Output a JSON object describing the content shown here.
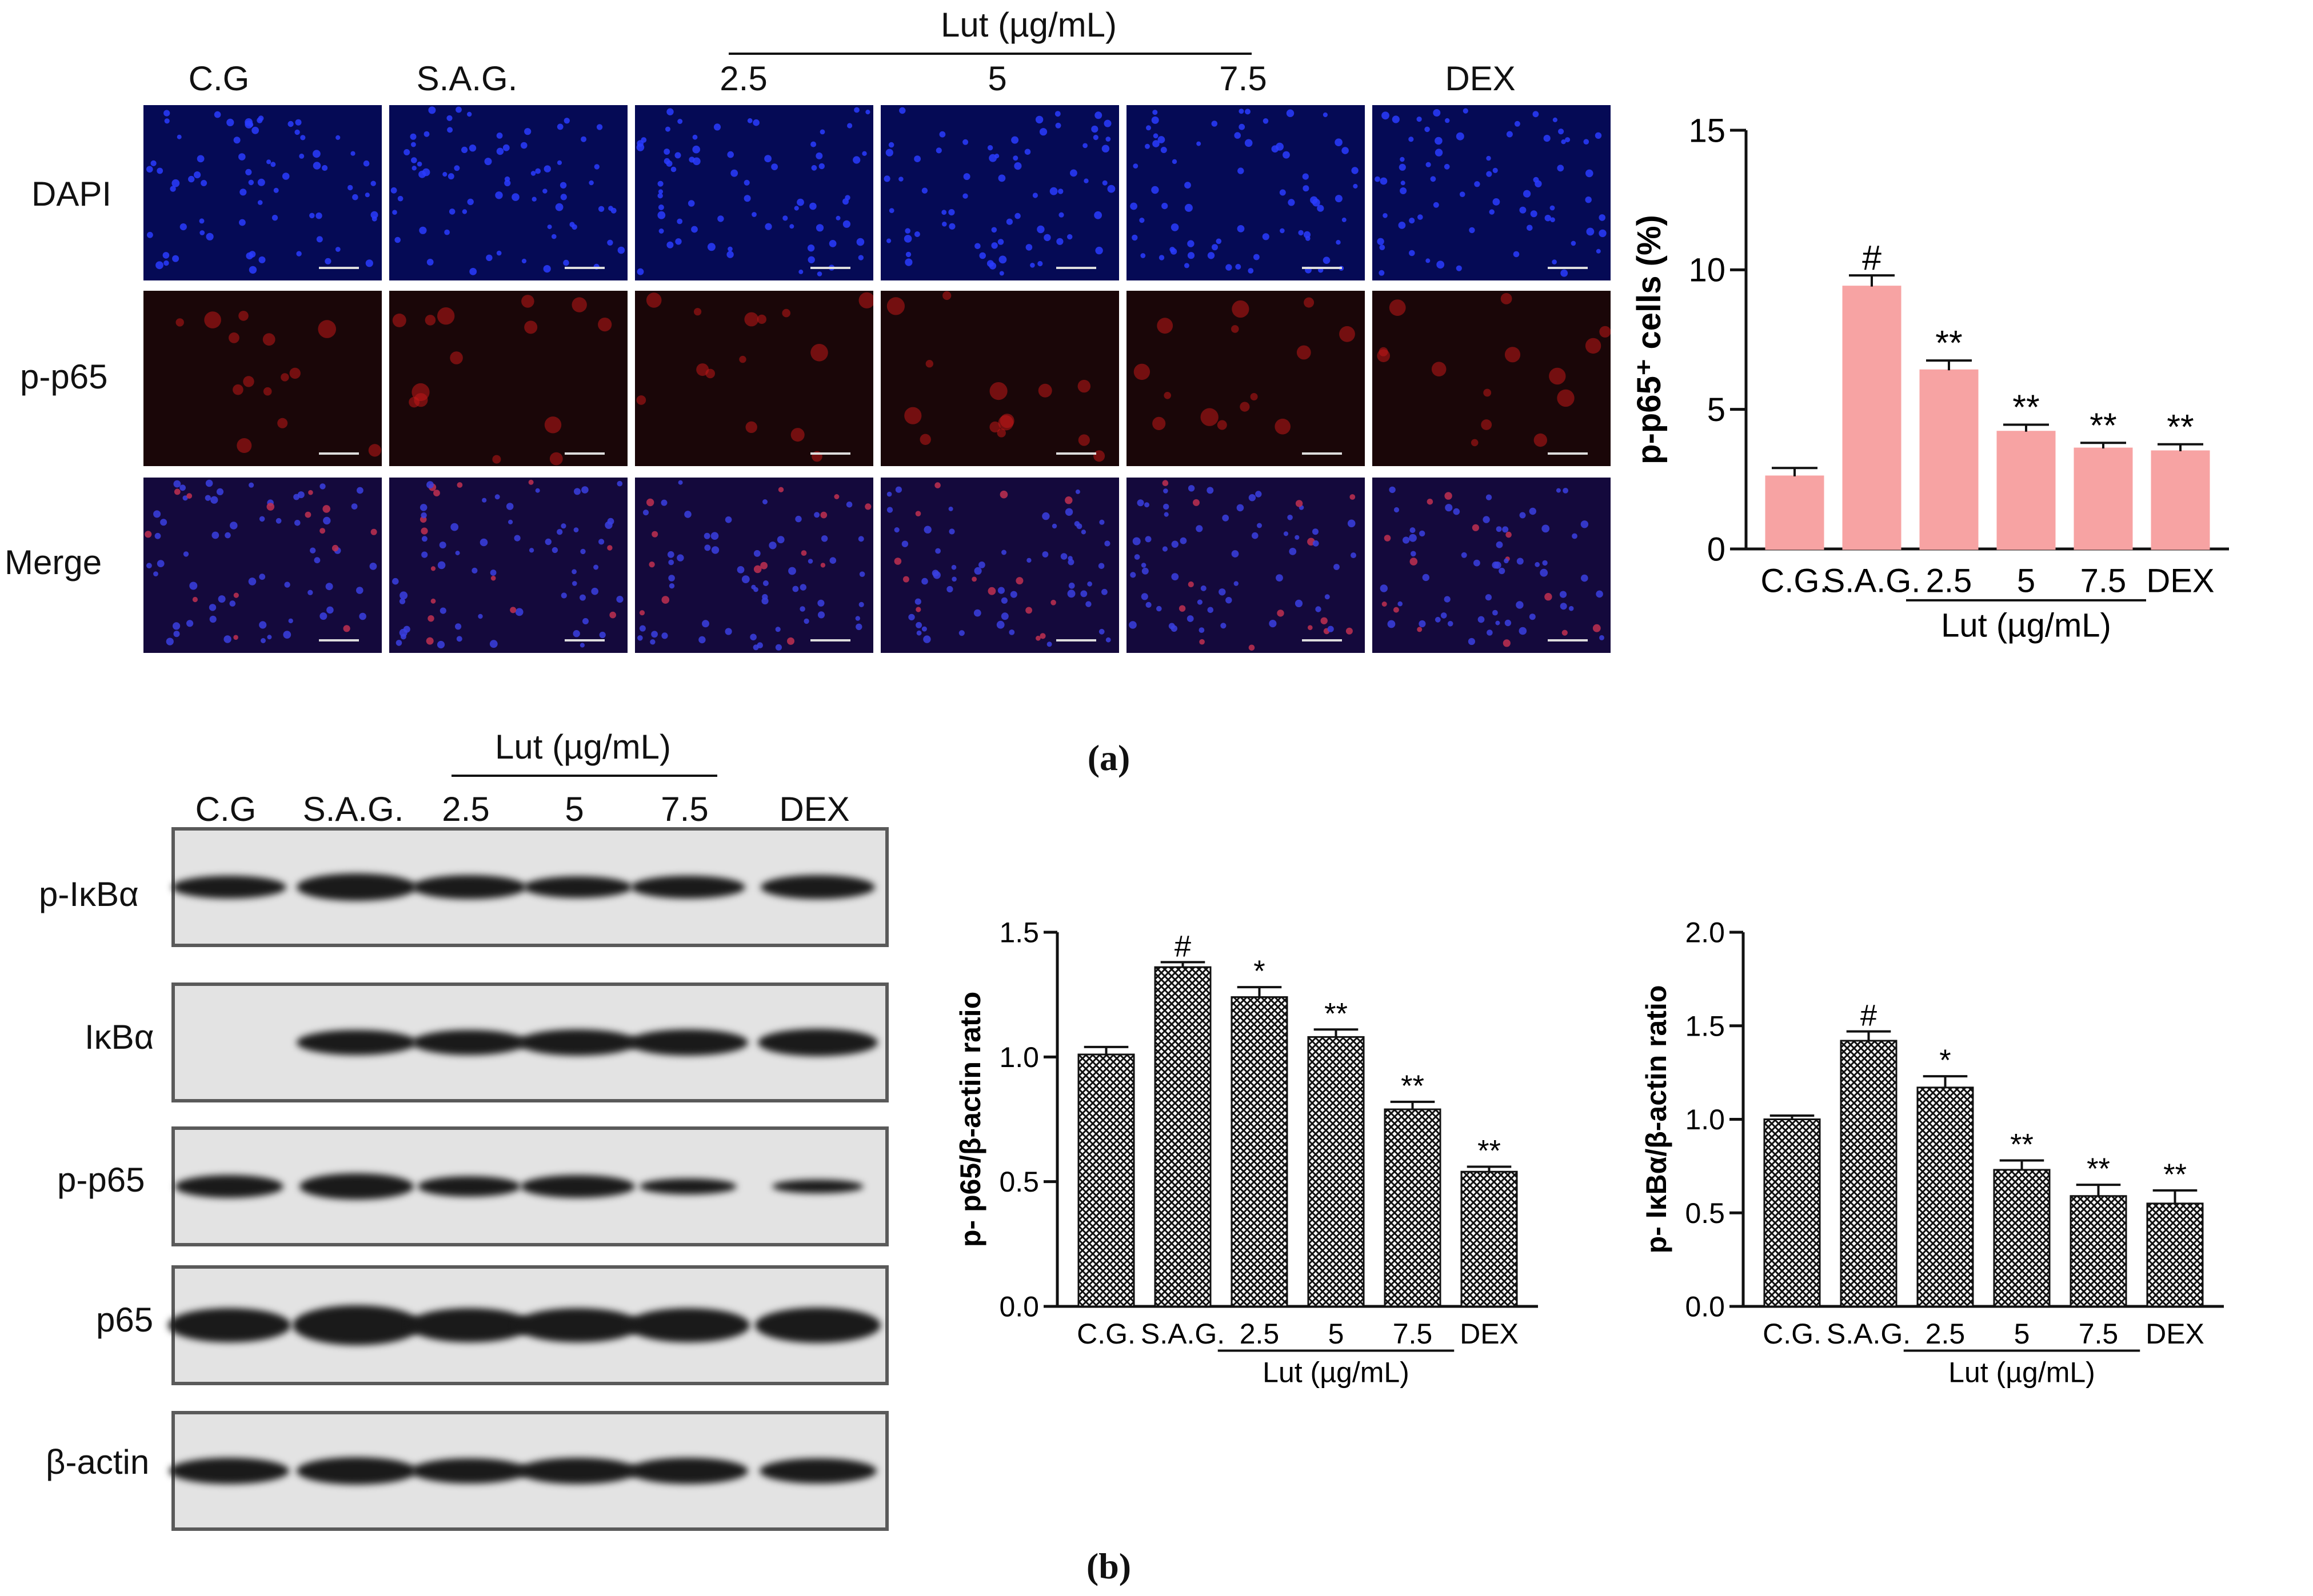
{
  "panel_a": {
    "label": "(a)",
    "group_header": "Lut (µg/mL)",
    "columns": [
      "C.G",
      "S.A.G.",
      "2.5",
      "5",
      "7.5",
      "DEX"
    ],
    "rows": [
      "DAPI",
      "p-p65",
      "Merge"
    ]
  },
  "panel_b": {
    "label": "(b)",
    "group_header": "Lut (µg/mL)",
    "columns": [
      "C.G",
      "S.A.G.",
      "2.5",
      "5",
      "7.5",
      "DEX"
    ],
    "rows": [
      "p-IκBα",
      "IκBα",
      "p-p65",
      "p65",
      "β-actin"
    ]
  },
  "chart_data": [
    {
      "type": "bar",
      "categories": [
        "C.G.",
        "S.A.G.",
        "2.5",
        "5",
        "7.5",
        "DEX"
      ],
      "group_label": "Lut (µg/mL)",
      "values": [
        2.6,
        9.4,
        6.4,
        4.2,
        3.6,
        3.5
      ],
      "errors": [
        0.3,
        0.4,
        0.35,
        0.25,
        0.2,
        0.25
      ],
      "annotations": [
        "",
        "#",
        "**",
        "**",
        "**",
        "**"
      ],
      "ylabel": "p-p65⁺ cells (%)",
      "ylim": [
        0,
        15
      ],
      "yticks": [
        "0",
        "5",
        "10",
        "15"
      ],
      "fill": "#f7a3a3",
      "pattern": "solid"
    },
    {
      "type": "bar",
      "categories": [
        "C.G.",
        "S.A.G.",
        "2.5",
        "5",
        "7.5",
        "DEX"
      ],
      "group_label": "Lut (µg/mL)",
      "values": [
        1.01,
        1.36,
        1.24,
        1.08,
        0.79,
        0.54
      ],
      "errors": [
        0.03,
        0.02,
        0.04,
        0.03,
        0.03,
        0.02
      ],
      "annotations": [
        "",
        "#",
        "*",
        "**",
        "**",
        "**"
      ],
      "ylabel": "p- p65/β-actin ratio",
      "ylim": [
        0,
        1.5
      ],
      "yticks": [
        "0.0",
        "0.5",
        "1.0",
        "1.5"
      ],
      "pattern": "crosshatch"
    },
    {
      "type": "bar",
      "categories": [
        "C.G.",
        "S.A.G.",
        "2.5",
        "5",
        "7.5",
        "DEX"
      ],
      "group_label": "Lut (µg/mL)",
      "values": [
        1.0,
        1.42,
        1.17,
        0.73,
        0.59,
        0.55
      ],
      "errors": [
        0.02,
        0.05,
        0.06,
        0.05,
        0.06,
        0.07
      ],
      "annotations": [
        "",
        "#",
        "*",
        "**",
        "**",
        "**"
      ],
      "ylabel": "p- IκBα/β-actin ratio",
      "ylim": [
        0,
        2.0
      ],
      "yticks": [
        "0.0",
        "0.5",
        "1.0",
        "1.5",
        "2.0"
      ],
      "pattern": "crosshatch"
    }
  ]
}
